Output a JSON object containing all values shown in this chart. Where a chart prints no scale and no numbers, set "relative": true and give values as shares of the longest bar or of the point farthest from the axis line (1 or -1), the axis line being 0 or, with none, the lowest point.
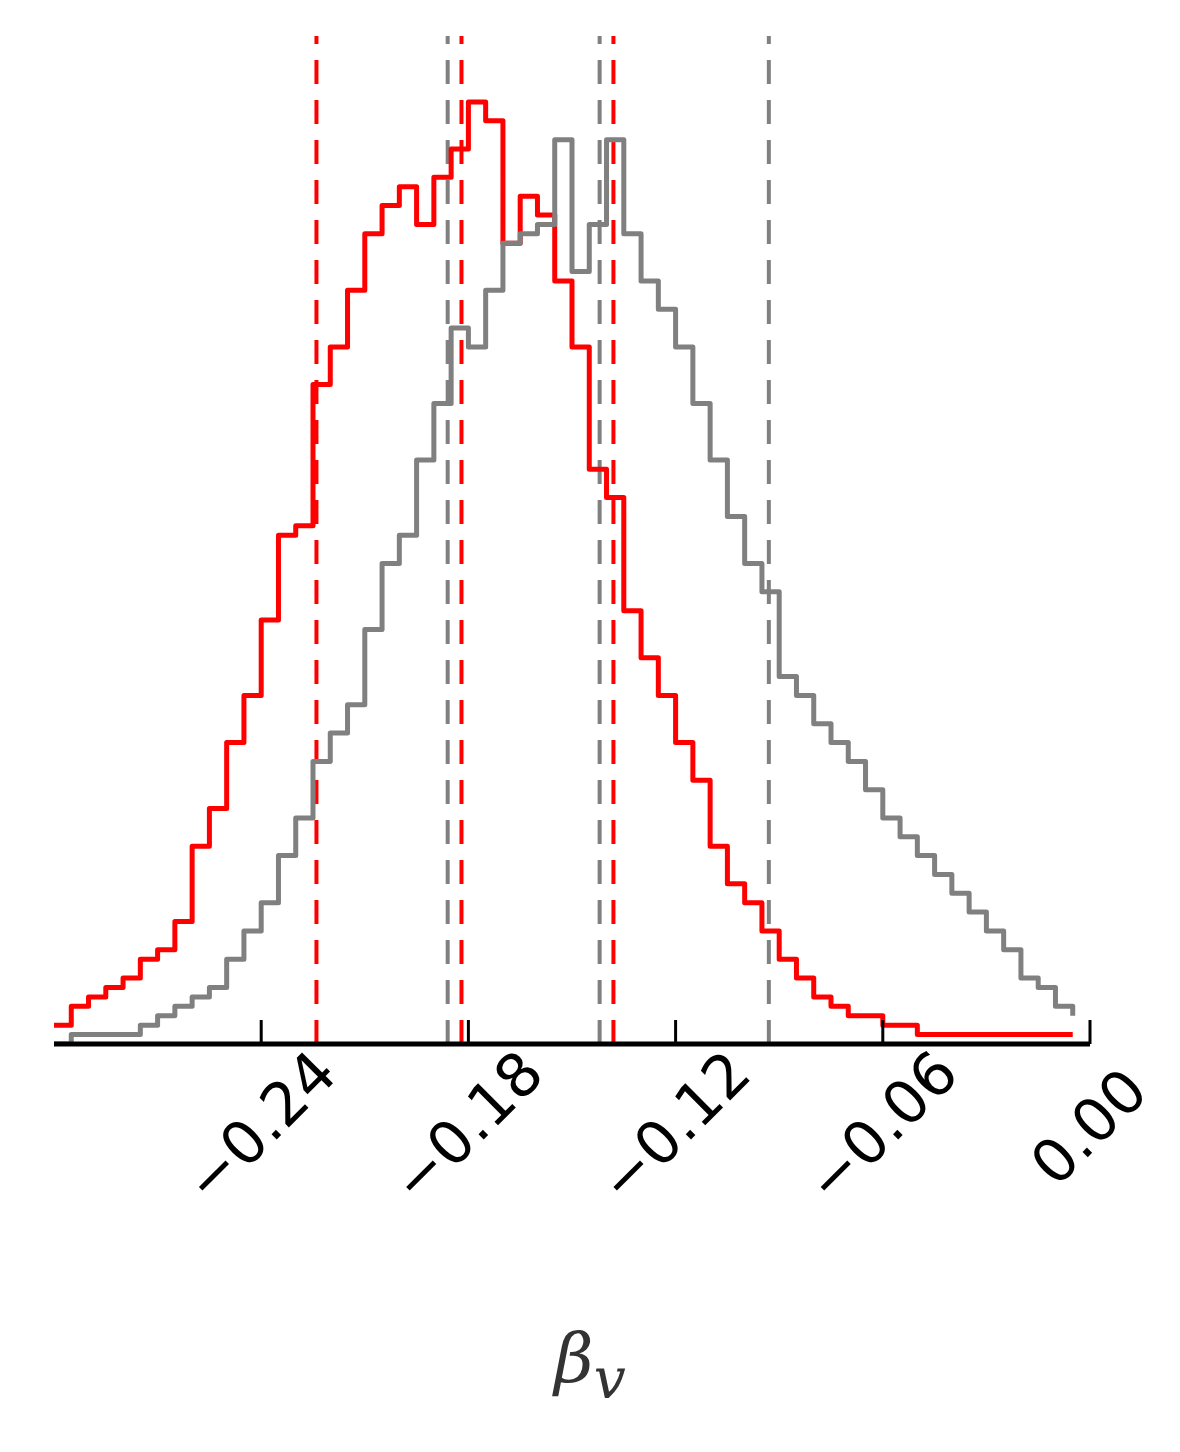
{
  "chart_data": {
    "type": "step",
    "relative": true,
    "xlabel": "β$_{v}$",
    "x": [
      -0.3,
      -0.295,
      -0.29,
      -0.285,
      -0.28,
      -0.275,
      -0.27,
      -0.265,
      -0.26,
      -0.255,
      -0.25,
      -0.245,
      -0.24,
      -0.235,
      -0.23,
      -0.225,
      -0.22,
      -0.215,
      -0.21,
      -0.205,
      -0.2,
      -0.195,
      -0.19,
      -0.185,
      -0.18,
      -0.175,
      -0.17,
      -0.165,
      -0.16,
      -0.155,
      -0.15,
      -0.145,
      -0.14,
      -0.135,
      -0.13,
      -0.125,
      -0.12,
      -0.115,
      -0.11,
      -0.105,
      -0.1,
      -0.095,
      -0.09,
      -0.085,
      -0.08,
      -0.075,
      -0.07,
      -0.065,
      -0.06,
      -0.055,
      -0.05,
      -0.045,
      -0.04,
      -0.035,
      -0.03,
      -0.025,
      -0.02,
      -0.015,
      -0.01,
      -0.005
    ],
    "series": [
      {
        "color": "#ff0000",
        "values": [
          0.02,
          0.04,
          0.05,
          0.06,
          0.07,
          0.09,
          0.1,
          0.13,
          0.21,
          0.25,
          0.32,
          0.37,
          0.45,
          0.54,
          0.55,
          0.7,
          0.74,
          0.8,
          0.86,
          0.89,
          0.91,
          0.87,
          0.92,
          0.95,
          1,
          0.98,
          0.85,
          0.9,
          0.88,
          0.81,
          0.74,
          0.61,
          0.58,
          0.46,
          0.41,
          0.37,
          0.32,
          0.28,
          0.21,
          0.17,
          0.15,
          0.12,
          0.09,
          0.07,
          0.05,
          0.04,
          0.03,
          0.03,
          0.02,
          0.02,
          0.01,
          0.01,
          0.01,
          0.01,
          0.01,
          0.01,
          0.01,
          0.01,
          0.01,
          0.01
        ]
      },
      {
        "color": "#808080",
        "values": [
          0,
          0.01,
          0.01,
          0.01,
          0.01,
          0.02,
          0.03,
          0.04,
          0.05,
          0.06,
          0.09,
          0.12,
          0.15,
          0.2,
          0.24,
          0.3,
          0.33,
          0.36,
          0.44,
          0.51,
          0.54,
          0.62,
          0.68,
          0.76,
          0.74,
          0.8,
          0.85,
          0.86,
          0.87,
          0.96,
          0.82,
          0.87,
          0.96,
          0.86,
          0.81,
          0.78,
          0.74,
          0.68,
          0.62,
          0.56,
          0.51,
          0.48,
          0.39,
          0.37,
          0.34,
          0.32,
          0.3,
          0.27,
          0.24,
          0.22,
          0.2,
          0.18,
          0.16,
          0.14,
          0.12,
          0.1,
          0.07,
          0.06,
          0.04,
          0.03
        ]
      }
    ],
    "xlim": [
      -0.3,
      0.0
    ],
    "xticks": [
      {
        "value": -0.24,
        "label": "−0.24"
      },
      {
        "value": -0.18,
        "label": "−0.18"
      },
      {
        "value": -0.12,
        "label": "−0.12"
      },
      {
        "value": -0.06,
        "label": "−0.06"
      },
      {
        "value": 0,
        "label": "0.00"
      }
    ],
    "ref_lines": [
      {
        "axis": "x",
        "value": -0.186,
        "color": "#808080",
        "line_style": "dashed"
      },
      {
        "axis": "x",
        "value": -0.142,
        "color": "#808080",
        "line_style": "dashed"
      },
      {
        "axis": "x",
        "value": -0.093,
        "color": "#808080",
        "line_style": "dashed"
      },
      {
        "axis": "x",
        "value": -0.224,
        "color": "#ff0000",
        "line_style": "dashed"
      },
      {
        "axis": "x",
        "value": -0.182,
        "color": "#ff0000",
        "line_style": "dashed"
      },
      {
        "axis": "x",
        "value": -0.138,
        "color": "#ff0000",
        "line_style": "dashed"
      }
    ],
    "tick_labels": "x",
    "grid": false,
    "legend": false
  }
}
